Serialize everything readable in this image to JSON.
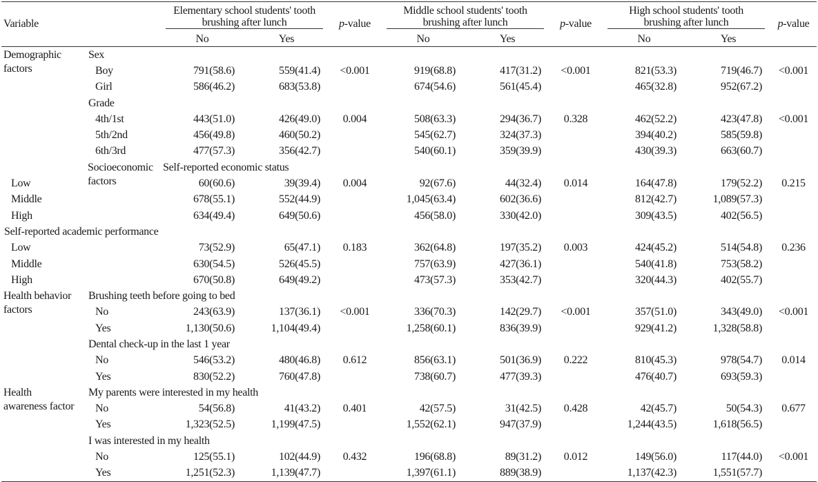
{
  "header": {
    "variable": "Variable",
    "groups": [
      {
        "line1": "Elementary school students' tooth",
        "line2": "brushing after lunch"
      },
      {
        "line1": "Middle school students' tooth",
        "line2": "brushing after lunch"
      },
      {
        "line1": "High school students' tooth",
        "line2": "brushing after lunch"
      }
    ],
    "p_italic": "p",
    "p_rest": "-value",
    "no": "No",
    "yes": "Yes"
  },
  "categories": [
    {
      "line1": "Demographic",
      "line2": "factors"
    },
    {
      "line1": "Socioeconomic",
      "line2": "factors"
    },
    {
      "line1": "Health behavior",
      "line2": "factors"
    },
    {
      "line1": "Health",
      "line2": "awareness factor"
    }
  ],
  "variables": [
    "Sex",
    "Grade",
    "Self-reported economic status",
    "Self-reported academic performance",
    "Brushing teeth before going to bed",
    "Dental check-up in the last 1 year",
    "My parents were interested in my health",
    "I was interested in my health"
  ],
  "rows": [
    {
      "label": "Boy",
      "e_no": "791(58.6)",
      "e_yes": "559(41.4)",
      "e_p": "<0.001",
      "m_no": "919(68.8)",
      "m_yes": "417(31.2)",
      "m_p": "<0.001",
      "h_no": "821(53.3)",
      "h_yes": "719(46.7)",
      "h_p": "<0.001"
    },
    {
      "label": "Girl",
      "e_no": "586(46.2)",
      "e_yes": "683(53.8)",
      "e_p": "",
      "m_no": "674(54.6)",
      "m_yes": "561(45.4)",
      "m_p": "",
      "h_no": "465(32.8)",
      "h_yes": "952(67.2)",
      "h_p": ""
    },
    {
      "label": "4th/1st",
      "e_no": "443(51.0)",
      "e_yes": "426(49.0)",
      "e_p": "0.004",
      "m_no": "508(63.3)",
      "m_yes": "294(36.7)",
      "m_p": "0.328",
      "h_no": "462(52.2)",
      "h_yes": "423(47.8)",
      "h_p": "<0.001"
    },
    {
      "label": "5th/2nd",
      "e_no": "456(49.8)",
      "e_yes": "460(50.2)",
      "e_p": "",
      "m_no": "545(62.7)",
      "m_yes": "324(37.3)",
      "m_p": "",
      "h_no": "394(40.2)",
      "h_yes": "585(59.8)",
      "h_p": ""
    },
    {
      "label": "6th/3rd",
      "e_no": "477(57.3)",
      "e_yes": "356(42.7)",
      "e_p": "",
      "m_no": "540(60.1)",
      "m_yes": "359(39.9)",
      "m_p": "",
      "h_no": "430(39.3)",
      "h_yes": "663(60.7)",
      "h_p": ""
    },
    {
      "label": "Low",
      "e_no": "60(60.6)",
      "e_yes": "39(39.4)",
      "e_p": "0.004",
      "m_no": "92(67.6)",
      "m_yes": "44(32.4)",
      "m_p": "0.014",
      "h_no": "164(47.8)",
      "h_yes": "179(52.2)",
      "h_p": "0.215"
    },
    {
      "label": "Middle",
      "e_no": "678(55.1)",
      "e_yes": "552(44.9)",
      "e_p": "",
      "m_no": "1,045(63.4)",
      "m_yes": "602(36.6)",
      "m_p": "",
      "h_no": "812(42.7)",
      "h_yes": "1,089(57.3)",
      "h_p": ""
    },
    {
      "label": "High",
      "e_no": "634(49.4)",
      "e_yes": "649(50.6)",
      "e_p": "",
      "m_no": "456(58.0)",
      "m_yes": "330(42.0)",
      "m_p": "",
      "h_no": "309(43.5)",
      "h_yes": "402(56.5)",
      "h_p": ""
    },
    {
      "label": "Low",
      "e_no": "73(52.9)",
      "e_yes": "65(47.1)",
      "e_p": "0.183",
      "m_no": "362(64.8)",
      "m_yes": "197(35.2)",
      "m_p": "0.003",
      "h_no": "424(45.2)",
      "h_yes": "514(54.8)",
      "h_p": "0.236"
    },
    {
      "label": "Middle",
      "e_no": "630(54.5)",
      "e_yes": "526(45.5)",
      "e_p": "",
      "m_no": "757(63.9)",
      "m_yes": "427(36.1)",
      "m_p": "",
      "h_no": "540(41.8)",
      "h_yes": "753(58.2)",
      "h_p": ""
    },
    {
      "label": "High",
      "e_no": "670(50.8)",
      "e_yes": "649(49.2)",
      "e_p": "",
      "m_no": "473(57.3)",
      "m_yes": "353(42.7)",
      "m_p": "",
      "h_no": "320(44.3)",
      "h_yes": "402(55.7)",
      "h_p": ""
    },
    {
      "label": "No",
      "e_no": "243(63.9)",
      "e_yes": "137(36.1)",
      "e_p": "<0.001",
      "m_no": "336(70.3)",
      "m_yes": "142(29.7)",
      "m_p": "<0.001",
      "h_no": "357(51.0)",
      "h_yes": "343(49.0)",
      "h_p": "<0.001"
    },
    {
      "label": "Yes",
      "e_no": "1,130(50.6)",
      "e_yes": "1,104(49.4)",
      "e_p": "",
      "m_no": "1,258(60.1)",
      "m_yes": "836(39.9)",
      "m_p": "",
      "h_no": "929(41.2)",
      "h_yes": "1,328(58.8)",
      "h_p": ""
    },
    {
      "label": "No",
      "e_no": "546(53.2)",
      "e_yes": "480(46.8)",
      "e_p": "0.612",
      "m_no": "856(63.1)",
      "m_yes": "501(36.9)",
      "m_p": "0.222",
      "h_no": "810(45.3)",
      "h_yes": "978(54.7)",
      "h_p": "0.014"
    },
    {
      "label": "Yes",
      "e_no": "830(52.2)",
      "e_yes": "760(47.8)",
      "e_p": "",
      "m_no": "738(60.7)",
      "m_yes": "477(39.3)",
      "m_p": "",
      "h_no": "476(40.7)",
      "h_yes": "693(59.3)",
      "h_p": ""
    },
    {
      "label": "No",
      "e_no": "54(56.8)",
      "e_yes": "41(43.2)",
      "e_p": "0.401",
      "m_no": "42(57.5)",
      "m_yes": "31(42.5)",
      "m_p": "0.428",
      "h_no": "42(45.7)",
      "h_yes": "50(54.3)",
      "h_p": "0.677"
    },
    {
      "label": "Yes",
      "e_no": "1,323(52.5)",
      "e_yes": "1,199(47.5)",
      "e_p": "",
      "m_no": "1,552(62.1)",
      "m_yes": "947(37.9)",
      "m_p": "",
      "h_no": "1,244(43.5)",
      "h_yes": "1,618(56.5)",
      "h_p": ""
    },
    {
      "label": "No",
      "e_no": "125(55.1)",
      "e_yes": "102(44.9)",
      "e_p": "0.432",
      "m_no": "196(68.8)",
      "m_yes": "89(31.2)",
      "m_p": "0.012",
      "h_no": "149(56.0)",
      "h_yes": "117(44.0)",
      "h_p": "<0.001"
    },
    {
      "label": "Yes",
      "e_no": "1,251(52.3)",
      "e_yes": "1,139(47.7)",
      "e_p": "",
      "m_no": "1,397(61.1)",
      "m_yes": "889(38.9)",
      "m_p": "",
      "h_no": "1,137(42.3)",
      "h_yes": "1,551(57.7)",
      "h_p": ""
    }
  ]
}
